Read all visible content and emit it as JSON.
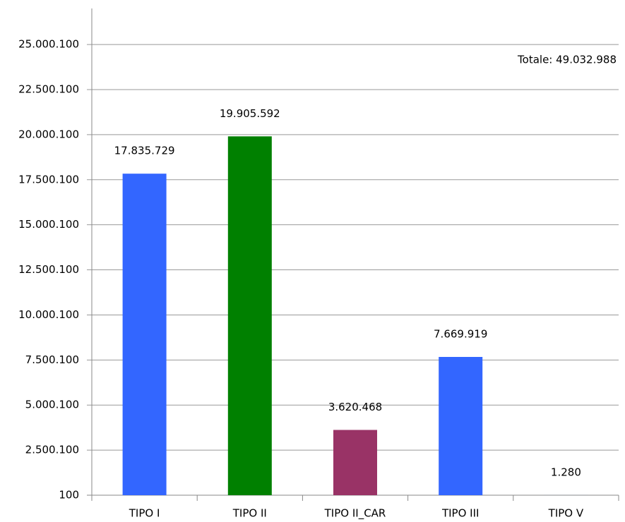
{
  "chart_data": {
    "type": "bar",
    "annotation": "Totale:  49.032.988",
    "categories": [
      "TIPO I",
      "TIPO II",
      "TIPO II_CAR",
      "TIPO III",
      "TIPO V"
    ],
    "values": [
      17835729,
      19905592,
      3620468,
      7669919,
      1280
    ],
    "value_labels": [
      "17.835.729",
      "19.905.592",
      "3.620.468",
      "7.669.919",
      "1.280"
    ],
    "colors": [
      "#3366ff",
      "#008000",
      "#993366",
      "#3366ff",
      "#3366ff"
    ],
    "ylim": [
      100,
      27000100
    ],
    "yticks": [
      100,
      {
        "value": 2500100,
        "label": "2.500.100"
      },
      {
        "value": 5000100,
        "label": "5.000.100"
      },
      {
        "value": 7500100,
        "label": "7.500.100"
      },
      {
        "value": 10000100,
        "label": "10.000.100"
      },
      {
        "value": 12500100,
        "label": "12.500.100"
      },
      {
        "value": 15000100,
        "label": "15.000.100"
      },
      {
        "value": 17500100,
        "label": "17.500.100"
      },
      {
        "value": 20000100,
        "label": "20.000.100"
      },
      {
        "value": 22500100,
        "label": "22.500.100"
      },
      {
        "value": 25000100,
        "label": "25.000.100"
      }
    ],
    "grid": true
  }
}
